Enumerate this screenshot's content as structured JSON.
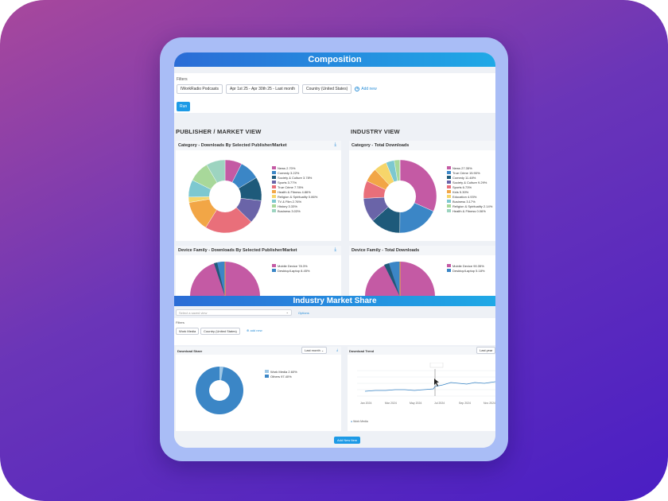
{
  "composition": {
    "title": "Composition",
    "filters_label": "Filters",
    "chips": [
      "IWorkRadio Podcasts",
      "Apr 1st 25 - Apr 30th 25 - Last month",
      "Country (United States)"
    ],
    "add_new": "Add new",
    "run": "Run",
    "left_title": "PUBLISHER / MARKET VIEW",
    "right_title": "INDUSTRY VIEW",
    "panels": {
      "cat_pub": "Category - Downloads By Selected Publisher/Market",
      "cat_total": "Category - Total Downloads",
      "dev_pub": "Device Family - Downloads By Selected Publisher/Market",
      "dev_total": "Device Family - Total Downloads"
    },
    "legend_pub": [
      "News 2.70%",
      "Comedy 3.22%",
      "Society & Culture 3.78%",
      "Sports 3.77%",
      "True Crime 7.78%",
      "Health & Fitness 4.86%",
      "Religion & Spirituality 0.86%",
      "TV & Film 2.76%",
      "History 3.33%",
      "Business 3.03%"
    ],
    "legend_total": [
      "News 27.35%",
      "True Crime 15.90%",
      "Comedy 11.48%",
      "Society & Culture 9.29%",
      "Sports 6.73%",
      "Kids 5.30%",
      "Education 4.93%",
      "Business 3.17%",
      "Religion & Spirituality 2.14%",
      "Health & Fitness 0.06%"
    ],
    "dev_legend_pub": [
      "Mobile Device 78.3%",
      "Desktop/Laptop 8.45%"
    ],
    "dev_legend_total": [
      "Mobile Device 90.35%",
      "Desktop/Laptop 5.18%"
    ]
  },
  "ims": {
    "title": "Industry Market Share",
    "search_placeholder": "Select a saved view",
    "options": "Options",
    "filters_label": "Filters",
    "chips": [
      "Work Media",
      "Country (United States)"
    ],
    "add_new": "add new",
    "share_title": "Download Share",
    "share_range": "Last month",
    "trend_title": "Download Trend",
    "trend_range": "Last year",
    "share_legend": [
      "Work Media 2.60%",
      "Others 97.40%"
    ],
    "trend_xticks": [
      "Jan 2024",
      "Mar 2024",
      "May 2024",
      "Jul 2024",
      "Sep 2024",
      "Nov 2024"
    ],
    "trend_series": "Work Media",
    "add_button": "Add New Item"
  },
  "colors": {
    "pub_pie": [
      "#c45aa4",
      "#3b86c6",
      "#1e5a7a",
      "#6a64a8",
      "#e96f7a",
      "#f2a646",
      "#f6d56a",
      "#7dc8d0",
      "#a8d89a",
      "#9dd4c0"
    ],
    "total_pie": [
      "#c45aa4",
      "#3b86c6",
      "#1e5a7a",
      "#6a64a8",
      "#e96f7a",
      "#f2a646",
      "#f6d56a",
      "#7dc8d0",
      "#a8d89a",
      "#9dd4c0"
    ]
  }
}
